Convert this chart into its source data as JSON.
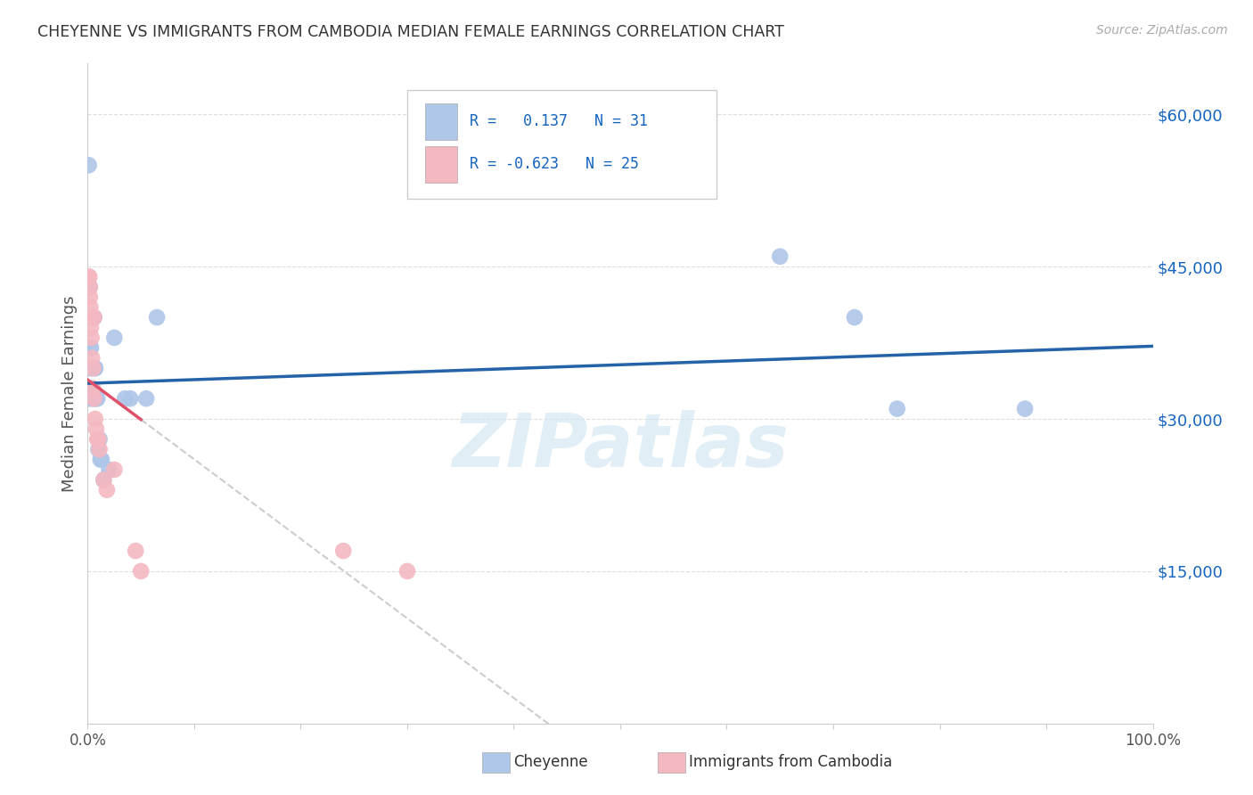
{
  "title": "CHEYENNE VS IMMIGRANTS FROM CAMBODIA MEDIAN FEMALE EARNINGS CORRELATION CHART",
  "source": "Source: ZipAtlas.com",
  "ylabel": "Median Female Earnings",
  "ytick_values": [
    15000,
    30000,
    45000,
    60000
  ],
  "ymin": 0,
  "ymax": 65000,
  "xmin": 0.0,
  "xmax": 100.0,
  "cheyenne_color": "#aec6e8",
  "cambodia_color": "#f4b8c1",
  "cheyenne_line_color": "#2563a8",
  "cambodia_line_color": "#e0506a",
  "watermark": "ZIPatlas",
  "cheyenne_points": [
    [
      0.1,
      55000
    ],
    [
      0.15,
      32000
    ],
    [
      0.2,
      43000
    ],
    [
      0.25,
      37000
    ],
    [
      0.3,
      37000
    ],
    [
      0.3,
      35000
    ],
    [
      0.35,
      35000
    ],
    [
      0.4,
      33000
    ],
    [
      0.5,
      32000
    ],
    [
      0.5,
      32000
    ],
    [
      0.6,
      40000
    ],
    [
      0.7,
      35000
    ],
    [
      0.7,
      35000
    ],
    [
      0.8,
      32000
    ],
    [
      0.9,
      32000
    ],
    [
      1.0,
      27000
    ],
    [
      1.0,
      28000
    ],
    [
      1.1,
      28000
    ],
    [
      1.2,
      26000
    ],
    [
      1.3,
      26000
    ],
    [
      1.5,
      24000
    ],
    [
      2.0,
      25000
    ],
    [
      2.5,
      38000
    ],
    [
      3.5,
      32000
    ],
    [
      4.0,
      32000
    ],
    [
      5.5,
      32000
    ],
    [
      6.5,
      40000
    ],
    [
      65.0,
      46000
    ],
    [
      72.0,
      40000
    ],
    [
      76.0,
      31000
    ],
    [
      88.0,
      31000
    ]
  ],
  "cambodia_points": [
    [
      0.1,
      44000
    ],
    [
      0.15,
      44000
    ],
    [
      0.2,
      43000
    ],
    [
      0.2,
      42000
    ],
    [
      0.25,
      41000
    ],
    [
      0.3,
      40000
    ],
    [
      0.3,
      39000
    ],
    [
      0.35,
      38000
    ],
    [
      0.4,
      36000
    ],
    [
      0.5,
      35000
    ],
    [
      0.5,
      33000
    ],
    [
      0.6,
      40000
    ],
    [
      0.6,
      32000
    ],
    [
      0.7,
      30000
    ],
    [
      0.8,
      29000
    ],
    [
      0.9,
      28000
    ],
    [
      1.0,
      28000
    ],
    [
      1.1,
      27000
    ],
    [
      1.5,
      24000
    ],
    [
      1.8,
      23000
    ],
    [
      2.5,
      25000
    ],
    [
      4.5,
      17000
    ],
    [
      5.0,
      15000
    ],
    [
      24.0,
      17000
    ],
    [
      30.0,
      15000
    ]
  ],
  "cambodia_solid_end": 5.0,
  "cambodia_dash_end": 50.0
}
